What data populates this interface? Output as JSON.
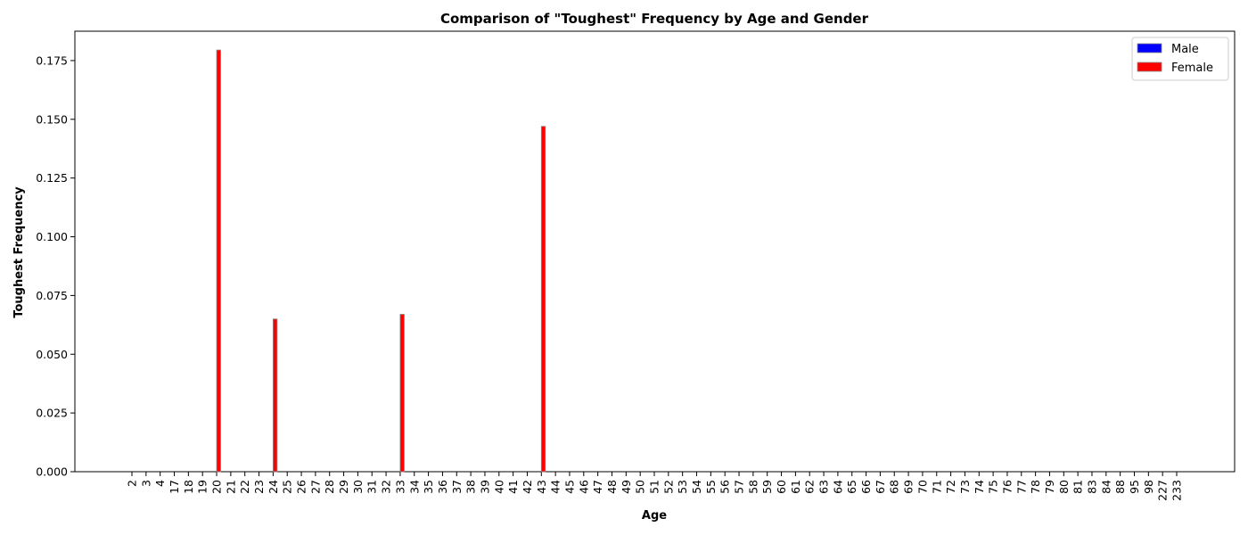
{
  "chart_data": {
    "type": "bar",
    "title": "Comparison of \"Toughest\" Frequency by Age and Gender",
    "xlabel": "Age",
    "ylabel": "Toughest Frequency",
    "ylim": [
      0,
      0.1875
    ],
    "yticks": [
      "0.000",
      "0.025",
      "0.050",
      "0.075",
      "0.100",
      "0.125",
      "0.150",
      "0.175"
    ],
    "categories": [
      "2",
      "3",
      "4",
      "17",
      "18",
      "19",
      "20",
      "21",
      "22",
      "23",
      "24",
      "25",
      "26",
      "27",
      "28",
      "29",
      "30",
      "31",
      "32",
      "33",
      "34",
      "35",
      "36",
      "37",
      "38",
      "39",
      "40",
      "41",
      "42",
      "43",
      "44",
      "45",
      "46",
      "47",
      "48",
      "49",
      "50",
      "51",
      "52",
      "53",
      "54",
      "55",
      "56",
      "57",
      "58",
      "59",
      "60",
      "61",
      "62",
      "63",
      "64",
      "65",
      "66",
      "67",
      "68",
      "69",
      "70",
      "71",
      "72",
      "73",
      "74",
      "75",
      "76",
      "77",
      "78",
      "79",
      "80",
      "81",
      "83",
      "84",
      "88",
      "95",
      "98",
      "227",
      "233"
    ],
    "series": [
      {
        "name": "Male",
        "color": "#0000ff",
        "values": [
          0,
          0,
          0,
          0,
          0,
          0,
          0,
          0,
          0,
          0,
          0,
          0,
          0,
          0,
          0,
          0,
          0,
          0,
          0,
          0,
          0,
          0,
          0,
          0,
          0,
          0,
          0,
          0,
          0,
          0,
          0,
          0,
          0,
          0,
          0,
          0,
          0,
          0,
          0,
          0,
          0,
          0,
          0,
          0,
          0,
          0,
          0,
          0,
          0,
          0,
          0,
          0,
          0,
          0,
          0,
          0,
          0,
          0,
          0,
          0,
          0,
          0,
          0,
          0,
          0,
          0,
          0,
          0,
          0,
          0,
          0,
          0,
          0,
          0,
          0
        ]
      },
      {
        "name": "Female",
        "color": "#ff0000",
        "values": [
          0,
          0,
          0,
          0,
          0,
          0,
          0.1795,
          0,
          0,
          0,
          0.065,
          0,
          0,
          0,
          0,
          0,
          0,
          0,
          0,
          0.067,
          0,
          0,
          0,
          0,
          0,
          0,
          0,
          0,
          0,
          0.147,
          0,
          0,
          0,
          0,
          0,
          0,
          0,
          0,
          0,
          0,
          0,
          0,
          0,
          0,
          0,
          0,
          0,
          0,
          0,
          0,
          0,
          0,
          0,
          0,
          0,
          0,
          0,
          0,
          0,
          0,
          0,
          0,
          0,
          0,
          0,
          0,
          0,
          0,
          0,
          0,
          0,
          0,
          0,
          0,
          0
        ]
      }
    ],
    "legend_position": "top-right",
    "grid": false
  }
}
